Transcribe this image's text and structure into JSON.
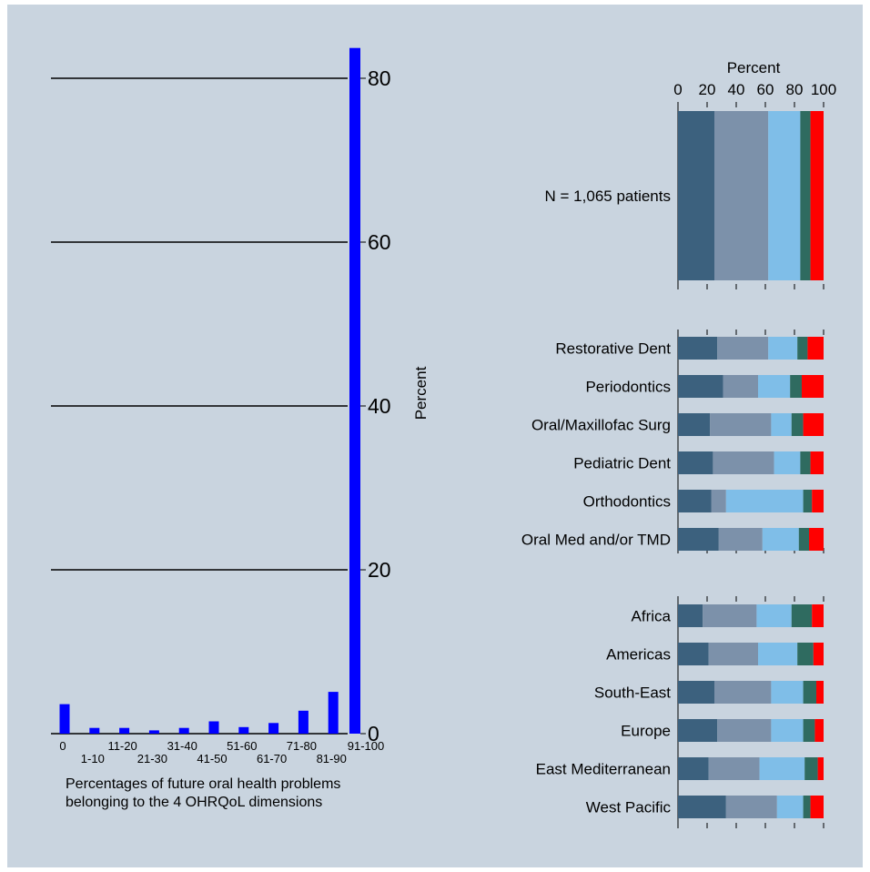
{
  "chart_data": [
    {
      "type": "bar",
      "orientation": "vertical",
      "categories": [
        "0",
        "1-10",
        "11-20",
        "21-30",
        "31-40",
        "41-50",
        "51-60",
        "61-70",
        "71-80",
        "81-90",
        "91-100"
      ],
      "values": [
        3.6,
        0.7,
        0.7,
        0.4,
        0.7,
        1.5,
        0.8,
        1.3,
        2.8,
        5.1,
        83.7
      ],
      "xlabel": "Percentages of future oral health problems belonging to the 4 OHRQoL dimensions",
      "ylabel": "Percent",
      "ylim": [
        0,
        84
      ],
      "yticks": [
        0,
        20,
        40,
        60,
        80
      ],
      "y_axis_side": "right",
      "grid": true,
      "bar_color": "#0000ff"
    },
    {
      "type": "bar",
      "orientation": "horizontal",
      "stacked": true,
      "xlabel": "Percent",
      "xticks": [
        0,
        20,
        40,
        60,
        80,
        100
      ],
      "xlim": [
        0,
        100
      ],
      "x_axis_side": "top",
      "segment_colors": [
        "#3c617e",
        "#7c91aa",
        "#7fbee8",
        "#2f6b60",
        "#ff0000"
      ],
      "groups": [
        {
          "categories": [
            "N = 1,065 patients"
          ],
          "values": [
            [
              25,
              37,
              22,
              7,
              9
            ]
          ]
        },
        {
          "categories": [
            "Restorative Dent",
            "Periodontics",
            "Oral/Maxillofac Surg",
            "Pediatric Dent",
            "Orthodontics",
            "Oral Med and/or TMD"
          ],
          "values": [
            [
              27,
              35,
              20,
              7,
              11
            ],
            [
              31,
              24,
              22,
              8,
              15
            ],
            [
              22,
              42,
              14,
              8,
              14
            ],
            [
              24,
              42,
              18,
              7,
              9
            ],
            [
              23,
              10,
              53,
              6,
              8
            ],
            [
              28,
              30,
              25,
              7,
              10
            ]
          ]
        },
        {
          "categories": [
            "Africa",
            "Americas",
            "South-East",
            "Europe",
            "East Mediterranean",
            "West Pacific"
          ],
          "values": [
            [
              17,
              37,
              24,
              14,
              8
            ],
            [
              21,
              34,
              27,
              11,
              7
            ],
            [
              25,
              39,
              22,
              9,
              5
            ],
            [
              27,
              37,
              22,
              8,
              6
            ],
            [
              21,
              35,
              31,
              9,
              4
            ],
            [
              33,
              35,
              18,
              5,
              9
            ]
          ]
        }
      ]
    }
  ]
}
